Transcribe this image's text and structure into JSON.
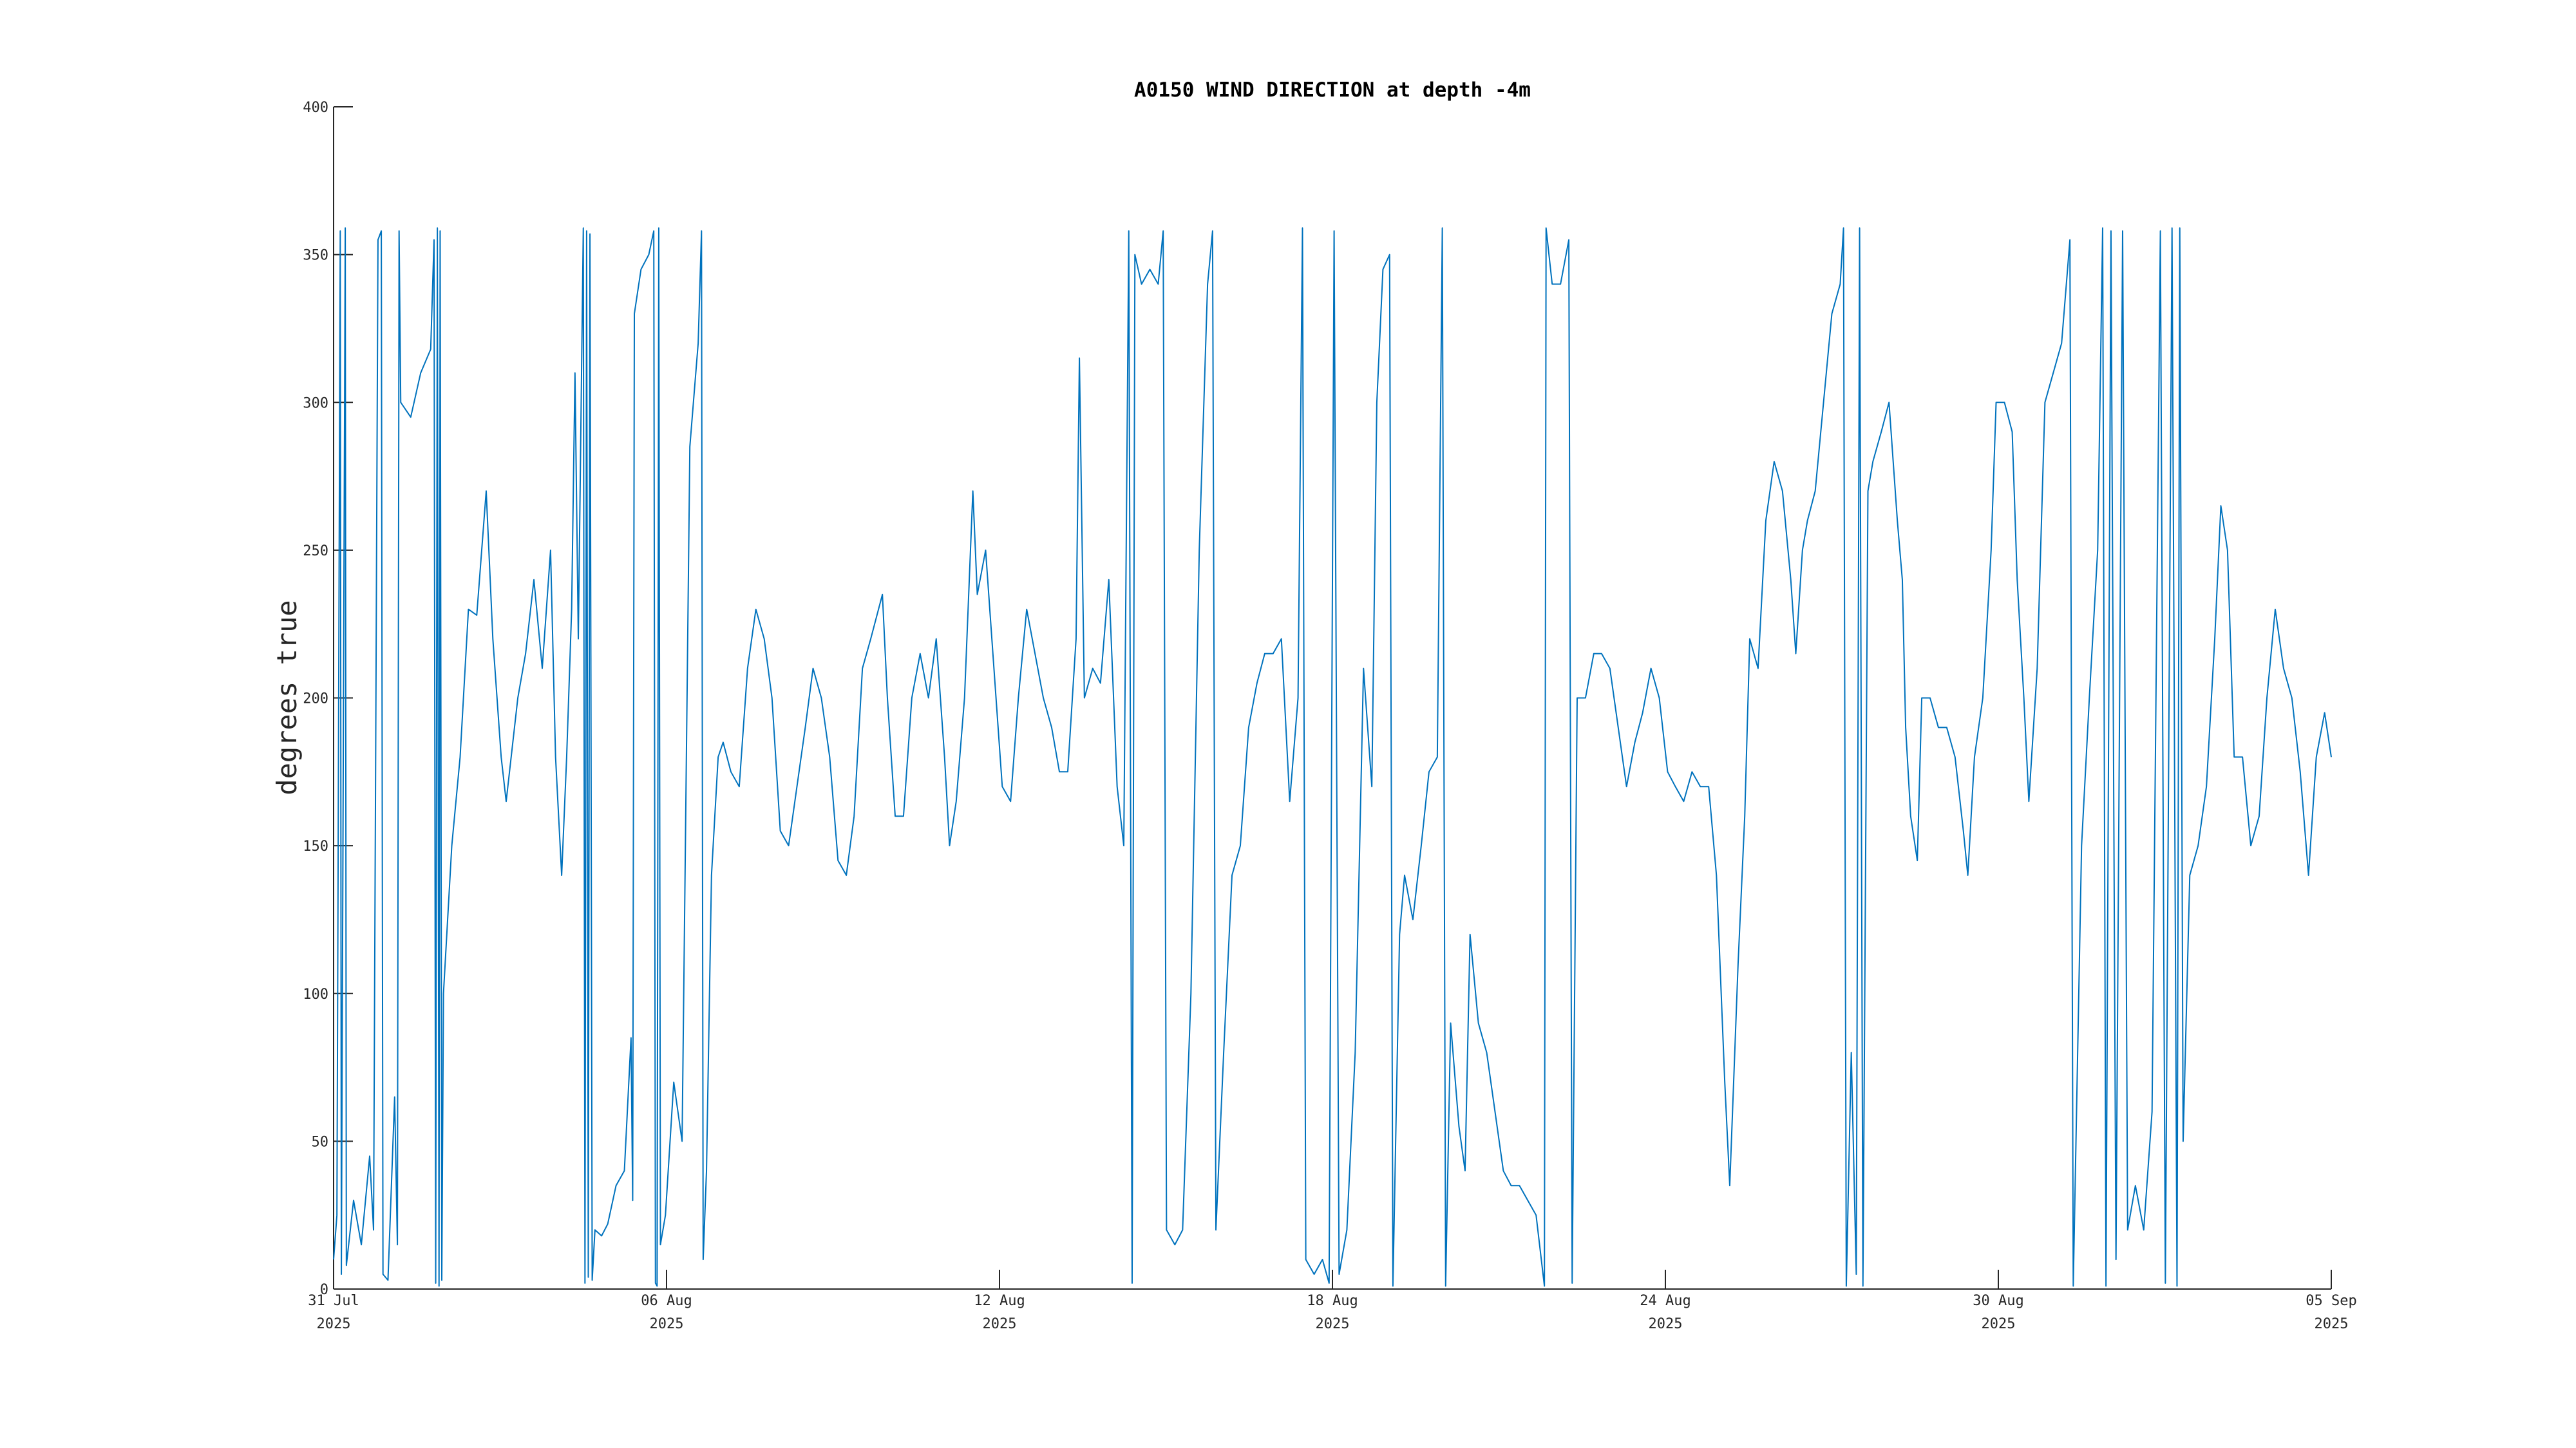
{
  "chart_data": {
    "type": "line",
    "title": "A0150 WIND DIRECTION at depth -4m",
    "ylabel": "degrees true",
    "color": "#0072bd",
    "xlim": [
      0,
      36
    ],
    "xticks": [
      {
        "value": 0,
        "label": [
          "31 Jul",
          "2025"
        ]
      },
      {
        "value": 6,
        "label": [
          "06 Aug",
          "2025"
        ]
      },
      {
        "value": 12,
        "label": [
          "12 Aug",
          "2025"
        ]
      },
      {
        "value": 18,
        "label": [
          "18 Aug",
          "2025"
        ]
      },
      {
        "value": 24,
        "label": [
          "24 Aug",
          "2025"
        ]
      },
      {
        "value": 30,
        "label": [
          "30 Aug",
          "2025"
        ]
      },
      {
        "value": 36,
        "label": [
          "05 Sep",
          "2025"
        ]
      }
    ],
    "ylim": [
      0,
      400
    ],
    "yticks": [
      0,
      50,
      100,
      150,
      200,
      250,
      300,
      350,
      400
    ],
    "x": [
      0.0,
      0.06,
      0.12,
      0.14,
      0.21,
      0.23,
      0.36,
      0.5,
      0.65,
      0.72,
      0.8,
      0.86,
      0.89,
      0.98,
      1.1,
      1.15,
      1.18,
      1.21,
      1.39,
      1.57,
      1.75,
      1.81,
      1.84,
      1.87,
      1.9,
      1.92,
      1.95,
      1.98,
      2.13,
      2.28,
      2.43,
      2.58,
      2.75,
      2.87,
      3.02,
      3.11,
      3.32,
      3.46,
      3.61,
      3.76,
      3.91,
      4.0,
      4.11,
      4.2,
      4.29,
      4.35,
      4.41,
      4.5,
      4.53,
      4.56,
      4.59,
      4.62,
      4.66,
      4.71,
      4.83,
      4.94,
      5.09,
      5.24,
      5.36,
      5.39,
      5.42,
      5.54,
      5.68,
      5.77,
      5.8,
      5.83,
      5.86,
      5.89,
      5.98,
      6.13,
      6.28,
      6.42,
      6.57,
      6.63,
      6.66,
      6.72,
      6.81,
      6.93,
      7.02,
      7.16,
      7.31,
      7.46,
      7.61,
      7.76,
      7.9,
      8.05,
      8.2,
      8.35,
      8.5,
      8.64,
      8.79,
      8.94,
      9.09,
      9.24,
      9.38,
      9.53,
      9.68,
      9.89,
      9.98,
      10.12,
      10.27,
      10.42,
      10.57,
      10.72,
      10.86,
      11.01,
      11.1,
      11.22,
      11.37,
      11.52,
      11.6,
      11.75,
      11.9,
      12.05,
      12.2,
      12.34,
      12.49,
      12.64,
      12.79,
      12.94,
      13.08,
      13.23,
      13.38,
      13.44,
      13.53,
      13.68,
      13.82,
      13.97,
      14.12,
      14.24,
      14.33,
      14.39,
      14.44,
      14.56,
      14.71,
      14.86,
      14.95,
      15.01,
      15.16,
      15.3,
      15.45,
      15.6,
      15.75,
      15.84,
      15.9,
      16.04,
      16.19,
      16.34,
      16.49,
      16.64,
      16.78,
      16.93,
      17.08,
      17.23,
      17.38,
      17.46,
      17.52,
      17.67,
      17.82,
      17.94,
      18.03,
      18.12,
      18.26,
      18.41,
      18.56,
      18.71,
      18.8,
      18.91,
      19.03,
      19.09,
      19.21,
      19.3,
      19.45,
      19.6,
      19.74,
      19.89,
      19.98,
      20.04,
      20.13,
      20.28,
      20.39,
      20.48,
      20.63,
      20.78,
      20.93,
      21.08,
      21.22,
      21.37,
      21.52,
      21.67,
      21.82,
      21.85,
      21.96,
      22.11,
      22.26,
      22.32,
      22.41,
      22.56,
      22.71,
      22.85,
      23.0,
      23.15,
      23.3,
      23.45,
      23.59,
      23.74,
      23.89,
      24.04,
      24.18,
      24.33,
      24.48,
      24.63,
      24.78,
      24.92,
      25.07,
      25.16,
      25.31,
      25.43,
      25.52,
      25.67,
      25.81,
      25.96,
      26.11,
      26.26,
      26.35,
      26.47,
      26.56,
      26.7,
      26.85,
      27.0,
      27.15,
      27.21,
      27.26,
      27.35,
      27.44,
      27.5,
      27.56,
      27.65,
      27.74,
      27.89,
      28.03,
      28.18,
      28.27,
      28.33,
      28.42,
      28.54,
      28.62,
      28.77,
      28.92,
      29.07,
      29.22,
      29.37,
      29.45,
      29.57,
      29.72,
      29.87,
      29.96,
      30.11,
      30.25,
      30.34,
      30.46,
      30.55,
      30.7,
      30.84,
      30.99,
      31.14,
      31.29,
      31.35,
      31.5,
      31.64,
      31.79,
      31.88,
      31.94,
      32.03,
      32.12,
      32.24,
      32.33,
      32.47,
      32.62,
      32.77,
      32.92,
      33.01,
      33.13,
      33.22,
      33.27,
      33.33,
      33.45,
      33.6,
      33.75,
      33.9,
      34.01,
      34.13,
      34.25,
      34.4,
      34.55,
      34.7,
      34.84,
      34.99,
      35.14,
      35.29,
      35.44,
      35.59,
      35.73,
      35.88,
      36.0
    ],
    "values": [
      10,
      25,
      358,
      5,
      359,
      8,
      30,
      15,
      45,
      20,
      355,
      358,
      5,
      3,
      65,
      15,
      358,
      300,
      295,
      310,
      318,
      355,
      2,
      359,
      1,
      358,
      3,
      100,
      150,
      180,
      230,
      228,
      270,
      220,
      180,
      165,
      200,
      215,
      240,
      210,
      250,
      180,
      140,
      180,
      230,
      310,
      220,
      359,
      2,
      358,
      4,
      357,
      3,
      20,
      18,
      22,
      35,
      40,
      85,
      30,
      330,
      345,
      350,
      358,
      2,
      1,
      359,
      15,
      25,
      70,
      50,
      285,
      320,
      358,
      10,
      40,
      140,
      180,
      185,
      175,
      170,
      210,
      230,
      220,
      200,
      155,
      150,
      170,
      190,
      210,
      200,
      180,
      145,
      140,
      160,
      210,
      220,
      235,
      200,
      160,
      160,
      200,
      215,
      200,
      220,
      180,
      150,
      165,
      200,
      270,
      235,
      250,
      210,
      170,
      165,
      200,
      230,
      215,
      200,
      190,
      175,
      175,
      220,
      315,
      200,
      210,
      205,
      240,
      170,
      150,
      358,
      2,
      350,
      340,
      345,
      340,
      358,
      20,
      15,
      20,
      100,
      250,
      340,
      358,
      20,
      80,
      140,
      150,
      190,
      205,
      215,
      215,
      220,
      165,
      200,
      359,
      10,
      5,
      10,
      2,
      358,
      5,
      20,
      80,
      210,
      170,
      300,
      345,
      350,
      1,
      120,
      140,
      125,
      150,
      175,
      180,
      359,
      1,
      90,
      55,
      40,
      120,
      90,
      80,
      60,
      40,
      35,
      35,
      30,
      25,
      1,
      359,
      340,
      340,
      355,
      2,
      200,
      200,
      215,
      215,
      210,
      190,
      170,
      185,
      195,
      210,
      200,
      175,
      170,
      165,
      175,
      170,
      170,
      140,
      70,
      35,
      110,
      160,
      220,
      210,
      260,
      280,
      270,
      240,
      215,
      250,
      260,
      270,
      300,
      330,
      340,
      359,
      1,
      80,
      5,
      359,
      1,
      270,
      280,
      290,
      300,
      260,
      240,
      190,
      160,
      145,
      200,
      200,
      190,
      190,
      180,
      155,
      140,
      180,
      200,
      250,
      300,
      300,
      290,
      240,
      200,
      165,
      210,
      300,
      310,
      320,
      355,
      1,
      150,
      200,
      250,
      359,
      1,
      358,
      10,
      358,
      20,
      35,
      20,
      60,
      358,
      2,
      359,
      1,
      359,
      50,
      140,
      150,
      170,
      220,
      265,
      250,
      180,
      180,
      150,
      160,
      200,
      230,
      210,
      200,
      175,
      140,
      180,
      195,
      180
    ]
  }
}
